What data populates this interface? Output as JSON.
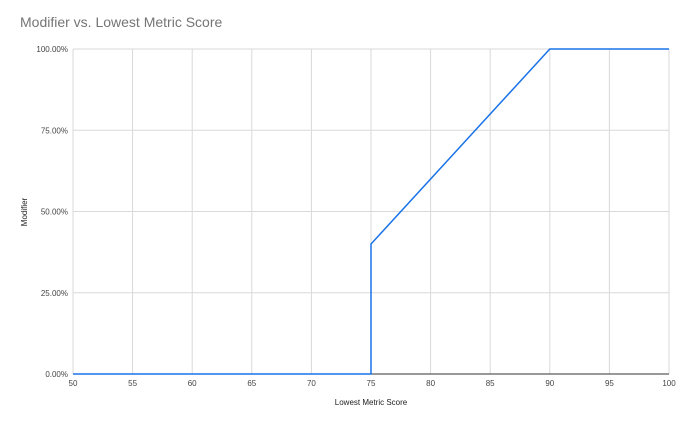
{
  "chart_data": {
    "type": "line",
    "title": "Modifier vs. Lowest Metric Score",
    "xlabel": "Lowest Metric Score",
    "ylabel": "Modifier",
    "xlim": [
      50,
      100
    ],
    "ylim": [
      0,
      1
    ],
    "x_ticks": [
      50,
      55,
      60,
      65,
      70,
      75,
      80,
      85,
      90,
      95,
      100
    ],
    "x_tick_labels": [
      "50",
      "55",
      "60",
      "65",
      "70",
      "75",
      "80",
      "85",
      "90",
      "95",
      "100"
    ],
    "y_ticks": [
      0,
      0.25,
      0.5,
      0.75,
      1
    ],
    "y_tick_labels": [
      "0.00%",
      "25.00%",
      "50.00%",
      "75.00%",
      "100.00%"
    ],
    "grid": true,
    "legend": "none",
    "series": [
      {
        "color": "#1a73e8",
        "points": [
          {
            "x": 50,
            "y": 0
          },
          {
            "x": 75,
            "y": 0
          },
          {
            "x": 75,
            "y": 0.4
          },
          {
            "x": 90,
            "y": 1
          },
          {
            "x": 100,
            "y": 1
          }
        ]
      }
    ],
    "colors": {
      "gridline": "#d9d9d9",
      "baseline": "#333333",
      "title": "#757575"
    }
  }
}
